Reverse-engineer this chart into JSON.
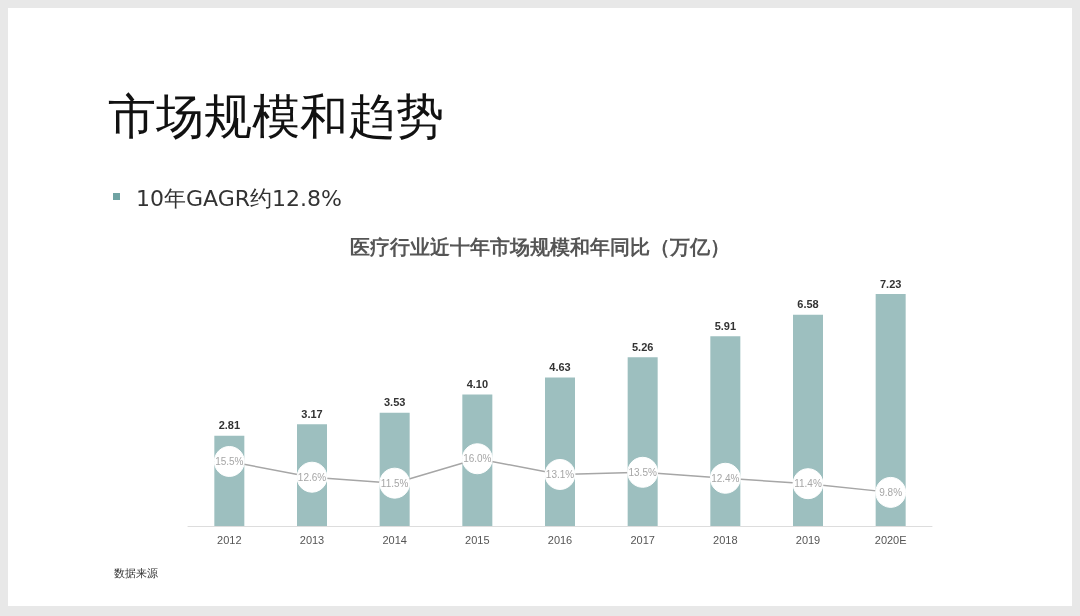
{
  "chart_data": {
    "type": "bar",
    "title": "市场规模和趋势",
    "subtitle": "10年GAGR约12.8%",
    "annotations": [
      "医疗行业近十年市场规模和年同比（万亿）",
      "数据来源"
    ],
    "categories": [
      "2012",
      "2013",
      "2014",
      "2015",
      "2016",
      "2017",
      "2018",
      "2019",
      "2020E"
    ],
    "series": [
      {
        "color": "#9dbfbf",
        "values": [
          2.81,
          3.17,
          3.53,
          4.1,
          4.63,
          5.26,
          5.91,
          6.58,
          7.23
        ],
        "value_labels": [
          "2.81",
          "3.17",
          "3.53",
          "4.10",
          "4.63",
          "5.26",
          "5.91",
          "6.58",
          "7.23"
        ]
      },
      {
        "type": "line",
        "axis": "y2",
        "color": "#a6a6a6",
        "values": [
          15.5,
          12.6,
          11.5,
          16.0,
          13.1,
          13.5,
          12.4,
          11.4,
          9.8
        ],
        "value_labels": [
          "15.5%",
          "12.6%",
          "11.5%",
          "16.0%",
          "13.1%",
          "13.5%",
          "12.4%",
          "11.4%",
          "9.8%"
        ]
      }
    ],
    "tick_labels": "x",
    "marker": "circle"
  }
}
